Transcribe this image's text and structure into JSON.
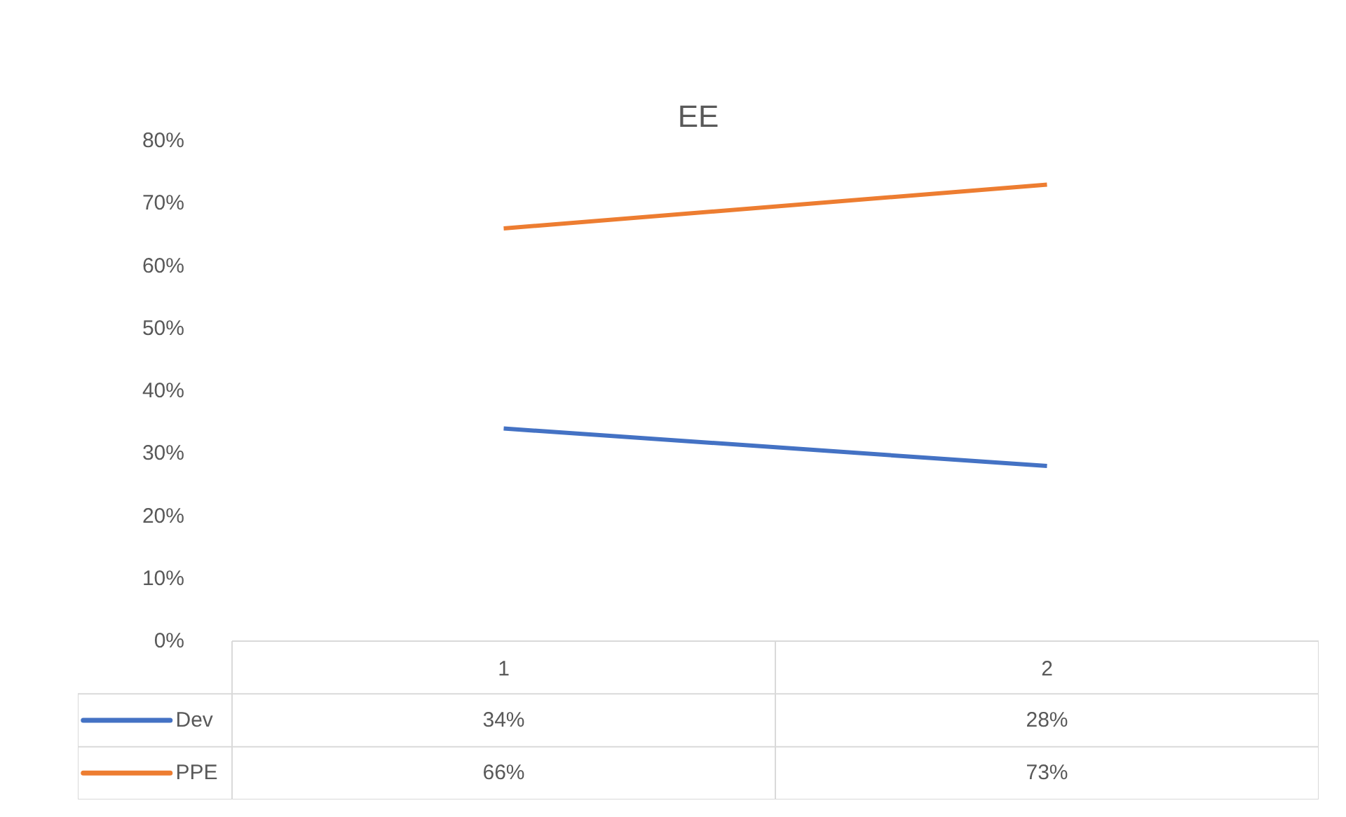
{
  "chart_data": {
    "type": "line",
    "title": "EE",
    "categories": [
      "1",
      "2"
    ],
    "series": [
      {
        "name": "Dev",
        "color": "#4472c4",
        "values": [
          34,
          28
        ],
        "value_labels": [
          "34%",
          "28%"
        ]
      },
      {
        "name": "PPE",
        "color": "#ed7d31",
        "values": [
          66,
          73
        ],
        "value_labels": [
          "66%",
          "73%"
        ]
      }
    ],
    "ylim": [
      0,
      80
    ],
    "yticks": [
      {
        "value": 0,
        "label": "0%"
      },
      {
        "value": 10,
        "label": "10%"
      },
      {
        "value": 20,
        "label": "20%"
      },
      {
        "value": 30,
        "label": "30%"
      },
      {
        "value": 40,
        "label": "40%"
      },
      {
        "value": 50,
        "label": "50%"
      },
      {
        "value": 60,
        "label": "60%"
      },
      {
        "value": 70,
        "label": "70%"
      },
      {
        "value": 80,
        "label": "80%"
      }
    ],
    "grid": false,
    "legend": "bottom"
  }
}
